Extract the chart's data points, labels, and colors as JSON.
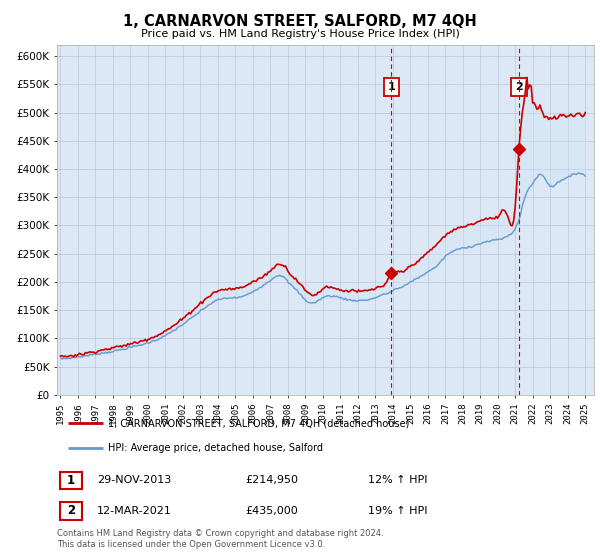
{
  "title": "1, CARNARVON STREET, SALFORD, M7 4QH",
  "subtitle": "Price paid vs. HM Land Registry's House Price Index (HPI)",
  "legend_line1": "1, CARNARVON STREET, SALFORD, M7 4QH (detached house)",
  "legend_line2": "HPI: Average price, detached house, Salford",
  "footer": "Contains HM Land Registry data © Crown copyright and database right 2024.\nThis data is licensed under the Open Government Licence v3.0.",
  "annotation1_date": "29-NOV-2013",
  "annotation1_value": "£214,950",
  "annotation1_pct": "12% ↑ HPI",
  "annotation2_date": "12-MAR-2021",
  "annotation2_value": "£435,000",
  "annotation2_pct": "19% ↑ HPI",
  "ylim_min": 0,
  "ylim_max": 620000,
  "yticks": [
    0,
    50000,
    100000,
    150000,
    200000,
    250000,
    300000,
    350000,
    400000,
    450000,
    500000,
    550000,
    600000
  ],
  "bg_color": "#dce8f5",
  "plot_bg": "#ffffff",
  "red_color": "#cc0000",
  "blue_color": "#6699cc",
  "fill_color": "#d0e4f5",
  "vline1_x": 2013.917,
  "vline2_x": 2021.208,
  "marker1_x": 2013.917,
  "marker1_y": 214950,
  "marker2_x": 2021.208,
  "marker2_y": 435000,
  "xmin": 1994.8,
  "xmax": 2025.5
}
